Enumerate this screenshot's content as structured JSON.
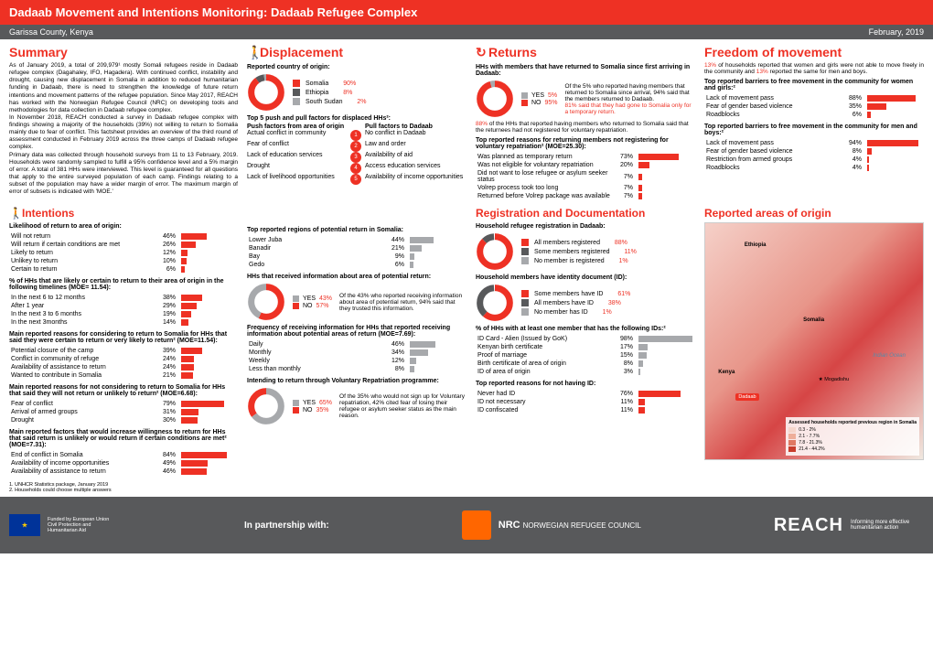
{
  "header": {
    "title": "Dadaab Movement and Intentions Monitoring: Dadaab Refugee Complex",
    "location": "Garissa County, Kenya",
    "date": "February, 2019"
  },
  "sections": {
    "summary": "Summary",
    "displacement": "Displacement",
    "returns": "Returns",
    "freedom": "Freedom of movement",
    "intentions": "Intentions",
    "regdoc": "Registration and Documentation",
    "origin": "Reported areas of origin"
  },
  "summary_para": "As of January 2019, a total of 209,979¹ mostly Somali refugees reside in Dadaab refugee complex (Dagahaley, IFO, Hagadera). With continued conflict, instability and drought, causing new displacement in Somalia in addition to reduced humanitarian funding in Dadaab, there is need to strengthen the knowledge of future return intentions and movement patterns of the refugee population. Since May 2017, REACH has worked with the Norwegian Refugee Council (NRC) on developing tools and methodologies for data collection in Dadaab refugee complex.\nIn November 2018, REACH conducted a survey in Dadaab refugee complex with findings showing a majority of the households (39%) not willing to return to Somalia mainly due to fear of conflict. This factsheet provides an overview of the third round of assessment conducted in February 2019 across the three camps of Dadaab refugee complex.\nPrimary data was collected through household surveys from 11 to 13 February, 2019. Households were randomly sampled to fulfill a 95% confidence level and a 5% margin of error. A total of 381 HHs were interviewed. This level is guaranteed for all questions that apply to the entire surveyed population of each camp. Findings relating to a subset of the population may have a wider margin of error. The maximum margin of error of subsets is indicated with 'MOE.'",
  "displacement": {
    "reported_origin_label": "Reported country of origin:",
    "countries": [
      {
        "name": "Somalia",
        "pct": "90%",
        "color": "#ee3124"
      },
      {
        "name": "Ethiopia",
        "pct": "8%",
        "color": "#58595b"
      },
      {
        "name": "South Sudan",
        "pct": "2%",
        "color": "#a7a9ac"
      }
    ],
    "pushpull_title": "Top 5 push and pull factors for displaced HHs²:",
    "push_head": "Push factors from area of origin",
    "pull_head": "Pull factors to Dadaab",
    "factors": [
      {
        "push": "Actual conflict in community",
        "n": "1",
        "pull": "No conflict in Dadaab"
      },
      {
        "push": "Fear of conflict",
        "n": "2",
        "pull": "Law and order"
      },
      {
        "push": "Lack of education services",
        "n": "3",
        "pull": "Availability of aid"
      },
      {
        "push": "Drought",
        "n": "4",
        "pull": "Access education services"
      },
      {
        "push": "Lack of livelihood opportunities",
        "n": "5",
        "pull": "Availability of income opportunities"
      }
    ]
  },
  "returns": {
    "h1": "HHs with members that have returned to Somalia since first arriving in Dadaab:",
    "yes": "5%",
    "no": "95%",
    "side_text_1": "Of the 5% who reported having members that returned to Somalia since arrival, 94% said that the members returned to Dadaab.",
    "side_text_2": "81% said that they had gone to Somalia only for a temporary return.",
    "h2": "88% of the HHs that reported having members who returned to Somalia said that the returnees had not registered for voluntary repatriation.",
    "h3": "Top reported reasons for returning members not registering for voluntary repatriation² (MOE=25.30):",
    "reasons": [
      {
        "label": "Was planned as temporary return",
        "pct": "73%",
        "w": 73
      },
      {
        "label": "Was not eligible for voluntary repatriation",
        "pct": "20%",
        "w": 20
      },
      {
        "label": "Did not want to lose refugee or asylum seeker status",
        "pct": "7%",
        "w": 7
      },
      {
        "label": "Volrep process took too long",
        "pct": "7%",
        "w": 7
      },
      {
        "label": "Returned before Volrep package was available",
        "pct": "7%",
        "w": 7
      }
    ]
  },
  "freedom": {
    "p1a": "13%",
    "p1": " of households reported that women and girls were not able to move freely in the community and ",
    "p1b": "13%",
    "p1c": " reported the same for men and boys.",
    "h_women": "Top reported barriers to free movement in the community for women and girls:²",
    "women": [
      {
        "label": "Lack of movement pass",
        "pct": "88%",
        "w": 88
      },
      {
        "label": "Fear of gender based violence",
        "pct": "35%",
        "w": 35
      },
      {
        "label": "Roadblocks",
        "pct": "6%",
        "w": 6
      }
    ],
    "h_men": "Top reported barriers to free movement in the community for men and boys:²",
    "men": [
      {
        "label": "Lack of movement pass",
        "pct": "94%",
        "w": 94
      },
      {
        "label": "Fear of gender based violence",
        "pct": "8%",
        "w": 8
      },
      {
        "label": "Restriction from armed groups",
        "pct": "4%",
        "w": 4
      },
      {
        "label": "Roadblocks",
        "pct": "4%",
        "w": 4
      }
    ]
  },
  "intentions": {
    "h1": "Likelihood of return to area of origin:",
    "likelihood": [
      {
        "label": "Will not return",
        "pct": "46%",
        "w": 46
      },
      {
        "label": "Will return if certain conditions are met",
        "pct": "26%",
        "w": 26
      },
      {
        "label": "Likely to return",
        "pct": "12%",
        "w": 12
      },
      {
        "label": "Unlikey to return",
        "pct": "10%",
        "w": 10
      },
      {
        "label": "Certain to return",
        "pct": "6%",
        "w": 6
      }
    ],
    "h2": "% of HHs that are likely or certain to return to their area of origin in the following timelines (MOE= 11.54):",
    "timelines": [
      {
        "label": "In the next 6 to 12 months",
        "pct": "38%",
        "w": 38
      },
      {
        "label": "After 1 year",
        "pct": "29%",
        "w": 29
      },
      {
        "label": "In the next 3 to 6 months",
        "pct": "19%",
        "w": 19
      },
      {
        "label": "In the next 3months",
        "pct": "14%",
        "w": 14
      }
    ],
    "h3": "Main reported reasons for considering to return to Somalia for HHs that said they were certain to  return or very likely to return² (MOE=11.54):",
    "reasons_yes": [
      {
        "label": "Potential closure of the camp",
        "pct": "39%",
        "w": 39
      },
      {
        "label": "Conflict in community of refuge",
        "pct": "24%",
        "w": 24
      },
      {
        "label": "Availability of assistance to return",
        "pct": "24%",
        "w": 24
      },
      {
        "label": "Wanted to contribute in Somalia",
        "pct": "21%",
        "w": 21
      }
    ],
    "h4": "Main reported reasons for not considering to return to Somalia for HHs that said they will not return or unlikely to return² (MOE=6.68):",
    "reasons_no": [
      {
        "label": "Fear of conflict",
        "pct": "79%",
        "w": 79
      },
      {
        "label": "Arrival of armed groups",
        "pct": "31%",
        "w": 31
      },
      {
        "label": "Drought",
        "pct": "30%",
        "w": 30
      }
    ],
    "h5": "Main reported factors that would increase willingness to return for HHs that said return is unlikely or would return if certain conditions are met² (MOE=7.31):",
    "willingness": [
      {
        "label": "End of conflict in Somalia",
        "pct": "84%",
        "w": 84
      },
      {
        "label": "Availability of income opportunities",
        "pct": "49%",
        "w": 49
      },
      {
        "label": "Availability of assistance to return",
        "pct": "46%",
        "w": 46
      }
    ],
    "h_regions": "Top reported regions of potential return in Somalia:",
    "regions": [
      {
        "label": "Lower Juba",
        "pct": "44%",
        "w": 44
      },
      {
        "label": "Banadir",
        "pct": "21%",
        "w": 21
      },
      {
        "label": "Bay",
        "pct": "9%",
        "w": 9
      },
      {
        "label": "Gedo",
        "pct": "6%",
        "w": 6
      }
    ],
    "h_info": "HHs that received information about area of potential return:",
    "info_yes": "43%",
    "info_no": "57%",
    "info_side": "Of the 43% who reported receiving information about area of potential return, 94% said that they trusted this information.",
    "h_freq": "Frequency of receiving information for HHs that reported receiving information about potential areas of return (MOE=7.69):",
    "freq": [
      {
        "label": "Daily",
        "pct": "46%",
        "w": 46
      },
      {
        "label": "Monthly",
        "pct": "34%",
        "w": 34
      },
      {
        "label": "Weekly",
        "pct": "12%",
        "w": 12
      },
      {
        "label": "Less than monthly",
        "pct": "8%",
        "w": 8
      }
    ],
    "h_volrep": "Intending to return through Voluntary Repatriation programme:",
    "volrep_yes": "65%",
    "volrep_no": "35%",
    "volrep_side": "Of the 35% who would not sign up for Voluntary repatriation, 42% cited fear of losing their refugee or asylum seeker status as the main reason."
  },
  "regdoc": {
    "h1": "Household refugee registration in Dadaab:",
    "reg": [
      {
        "label": "All members registered",
        "pct": "88%",
        "color": "#ee3124"
      },
      {
        "label": "Some members registered",
        "pct": "11%",
        "color": "#58595b"
      },
      {
        "label": "No member is registered",
        "pct": "1%",
        "color": "#a7a9ac"
      }
    ],
    "h2": "Household members have identity document (ID):",
    "id": [
      {
        "label": "Some members have ID",
        "pct": "61%",
        "color": "#ee3124"
      },
      {
        "label": "All members have ID",
        "pct": "38%",
        "color": "#58595b"
      },
      {
        "label": "No member has ID",
        "pct": "1%",
        "color": "#a7a9ac"
      }
    ],
    "h3": "% of HHs with at least one member that has the following IDs:²",
    "ids_list": [
      {
        "label": "ID Card - Alien (Issued by GoK)",
        "pct": "98%",
        "w": 98
      },
      {
        "label": "Kenyan birth certificate",
        "pct": "17%",
        "w": 17
      },
      {
        "label": "Proof of marriage",
        "pct": "15%",
        "w": 15
      },
      {
        "label": "Birth certificate of area of origin",
        "pct": "8%",
        "w": 8
      },
      {
        "label": "ID of area of origin",
        "pct": "3%",
        "w": 3
      }
    ],
    "h4": "Top reported reasons for not having ID:",
    "noid": [
      {
        "label": "Never had ID",
        "pct": "76%",
        "w": 76
      },
      {
        "label": "ID not necessary",
        "pct": "11%",
        "w": 11
      },
      {
        "label": "ID confiscated",
        "pct": "11%",
        "w": 11
      }
    ]
  },
  "map": {
    "title": "Reported areas of origin",
    "legend_title": "Assessed households reported previous region in Somalia",
    "bins": [
      {
        "label": "0.3 - 2%",
        "c": "#f5d6cc"
      },
      {
        "label": "2.1 - 7.7%",
        "c": "#eeae9a"
      },
      {
        "label": "7.8 - 21.3%",
        "c": "#e07862"
      },
      {
        "label": "21.4 - 44.2%",
        "c": "#c83c2b"
      }
    ],
    "labels": [
      "Somalia",
      "Ethiopia",
      "Kenya",
      "Indian Ocean",
      "Dadaab",
      "Mogadishu"
    ]
  },
  "footnotes": {
    "f1": "1. UNHCR Statistics package, January 2019",
    "f2": "2. Households could choose multiple answers"
  },
  "footer": {
    "partner": "In partnership with:",
    "eu_text": "Funded by European Union Civil Protection and Humanitarian Aid",
    "nrc": "NORWEGIAN REFUGEE COUNCIL",
    "reach": "REACH",
    "reach_tag": "Informing more effective humanitarian action"
  }
}
